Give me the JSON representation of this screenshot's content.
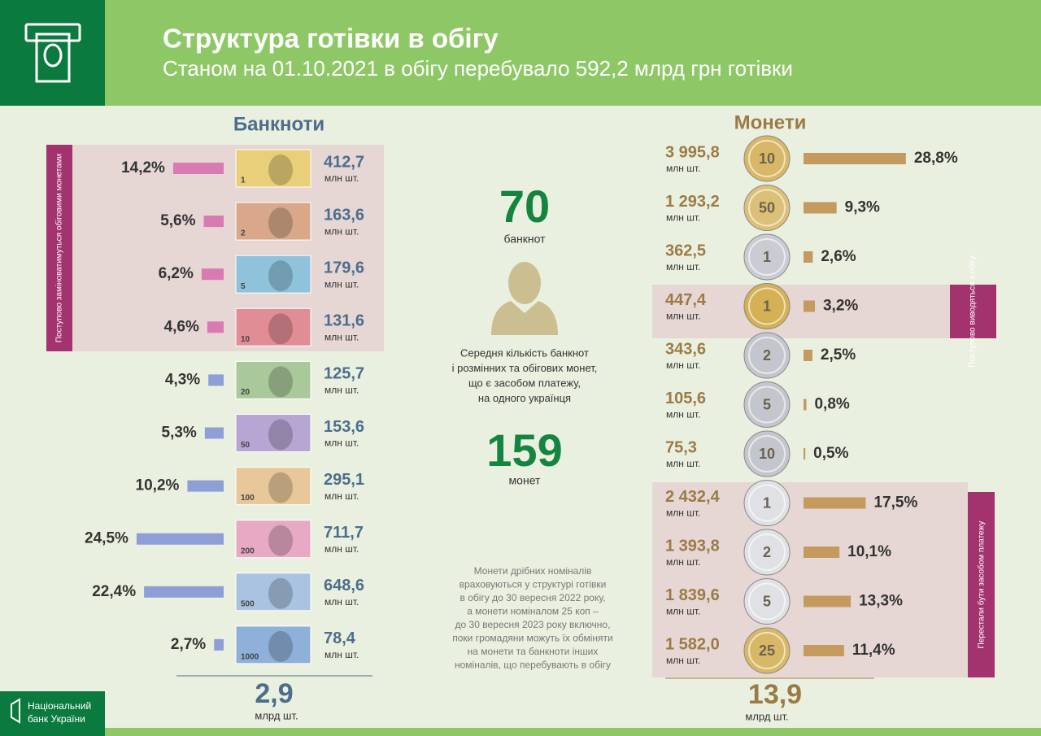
{
  "header": {
    "title": "Структура готівки в обігу",
    "subtitle": "Станом на 01.10.2021 в обігу перебувало 592,2 млрд грн готівки"
  },
  "banknotes": {
    "title": "Банкноти",
    "unit": "млн шт.",
    "panel_note": "Поступово заміноватимуться обіговими монетами",
    "items": [
      {
        "denomination": "1",
        "count": "412,7",
        "share": 14.2,
        "share_label": "14,2%",
        "color": "#e9cf7a"
      },
      {
        "denomination": "2",
        "count": "163,6",
        "share": 5.6,
        "share_label": "5,6%",
        "color": "#d9a88a"
      },
      {
        "denomination": "5",
        "count": "179,6",
        "share": 6.2,
        "share_label": "6,2%",
        "color": "#8fc3dc"
      },
      {
        "denomination": "10",
        "count": "131,6",
        "share": 4.6,
        "share_label": "4,6%",
        "color": "#e08d95"
      },
      {
        "denomination": "20",
        "count": "125,7",
        "share": 4.3,
        "share_label": "4,3%",
        "color": "#a9c99a"
      },
      {
        "denomination": "50",
        "count": "153,6",
        "share": 5.3,
        "share_label": "5,3%",
        "color": "#b7a5d4"
      },
      {
        "denomination": "100",
        "count": "295,1",
        "share": 10.2,
        "share_label": "10,2%",
        "color": "#e8c89a"
      },
      {
        "denomination": "200",
        "count": "711,7",
        "share": 24.5,
        "share_label": "24,5%",
        "color": "#e7a9c4"
      },
      {
        "denomination": "500",
        "count": "648,6",
        "share": 22.4,
        "share_label": "22,4%",
        "color": "#a9c3e0"
      },
      {
        "denomination": "1000",
        "count": "78,4",
        "share": 2.7,
        "share_label": "2,7%",
        "color": "#8fb0d9"
      }
    ],
    "total": "2,9",
    "total_unit": "млрд шт."
  },
  "center": {
    "banknotes_count": "70",
    "banknotes_label": "банкнот",
    "description": [
      "Середня кількість банкнот",
      "і розмінних та обігових монет,",
      "що є засобом платежу,",
      "на одного українця"
    ],
    "coins_count": "159",
    "coins_label": "монет",
    "note": [
      "Монети дрібних номіналів",
      "враховуються у структурі готівки",
      "в обігу до 30 вересня 2022 року,",
      "а монети номіналом 25 коп –",
      "до 30 вересня 2023 року включно,",
      "поки громадяни можуть їх обміняти",
      "на монети та банкноти інших",
      "номіналів, що перебувають в обігу"
    ]
  },
  "coins": {
    "title": "Монети",
    "unit": "млн шт.",
    "withdrawing_note": "Поступово виводяться з обігу",
    "invalid_note": "Перестали бути засобом платежу",
    "items": [
      {
        "denomination": "10",
        "count": "3 995,8",
        "share": 28.8,
        "share_label": "28,8%",
        "color": "#d8b866"
      },
      {
        "denomination": "50",
        "count": "1 293,2",
        "share": 9.3,
        "share_label": "9,3%",
        "color": "#dcc078"
      },
      {
        "denomination": "1",
        "count": "362,5",
        "share": 2.6,
        "share_label": "2,6%",
        "color": "#c9ccd2"
      },
      {
        "denomination": "1",
        "count": "447,4",
        "share": 3.2,
        "share_label": "3,2%",
        "color": "#d3b154"
      },
      {
        "denomination": "2",
        "count": "343,6",
        "share": 2.5,
        "share_label": "2,5%",
        "color": "#c3c6cc"
      },
      {
        "denomination": "5",
        "count": "105,6",
        "share": 0.8,
        "share_label": "0,8%",
        "color": "#c3c6cc"
      },
      {
        "denomination": "10",
        "count": "75,3",
        "share": 0.5,
        "share_label": "0,5%",
        "color": "#c3c6cc"
      },
      {
        "denomination": "1",
        "count": "2 432,4",
        "share": 17.5,
        "share_label": "17,5%",
        "color": "#dfe1e4"
      },
      {
        "denomination": "2",
        "count": "1 393,8",
        "share": 10.1,
        "share_label": "10,1%",
        "color": "#dfe1e4"
      },
      {
        "denomination": "5",
        "count": "1 839,6",
        "share": 13.3,
        "share_label": "13,3%",
        "color": "#dfe1e4"
      },
      {
        "denomination": "25",
        "count": "1 582,0",
        "share": 11.4,
        "share_label": "11,4%",
        "color": "#d8b866"
      }
    ],
    "total": "13,9",
    "total_unit": "млрд шт."
  },
  "footer": {
    "logo_line1": "Національний",
    "logo_line2": "банк України"
  }
}
